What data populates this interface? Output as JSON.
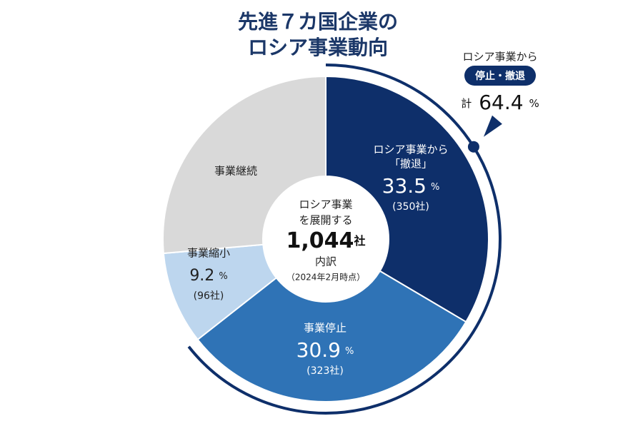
{
  "chart_data": {
    "type": "donut",
    "title_lines": [
      "先進７カ国企業の",
      "ロシア事業動向"
    ],
    "category_lines": [
      [
        "ロシア事業から",
        "「撤退」"
      ],
      [
        "事業停止"
      ],
      [
        "事業縮小"
      ],
      [
        "事業継続"
      ]
    ],
    "values": [
      33.5,
      30.9,
      9.2,
      26.4
    ],
    "unit": "%",
    "count_labels": [
      "(350社)",
      "(323社)",
      "(96社)",
      null
    ],
    "colors": [
      "#0e2f6a",
      "#2f73b6",
      "#bdd6ee",
      "#d9d9d9"
    ],
    "center": {
      "lines": [
        "ロシア事業",
        "を展開する"
      ],
      "total": "1,044",
      "total_unit": "社",
      "sub": "内訳",
      "note": "（2024年2月時点）"
    },
    "callout": {
      "line1": "ロシア事業から",
      "badge": "停止・撤退",
      "prefix": "計",
      "total": 64.4,
      "unit": "%",
      "color": "#0e2f6a"
    }
  }
}
